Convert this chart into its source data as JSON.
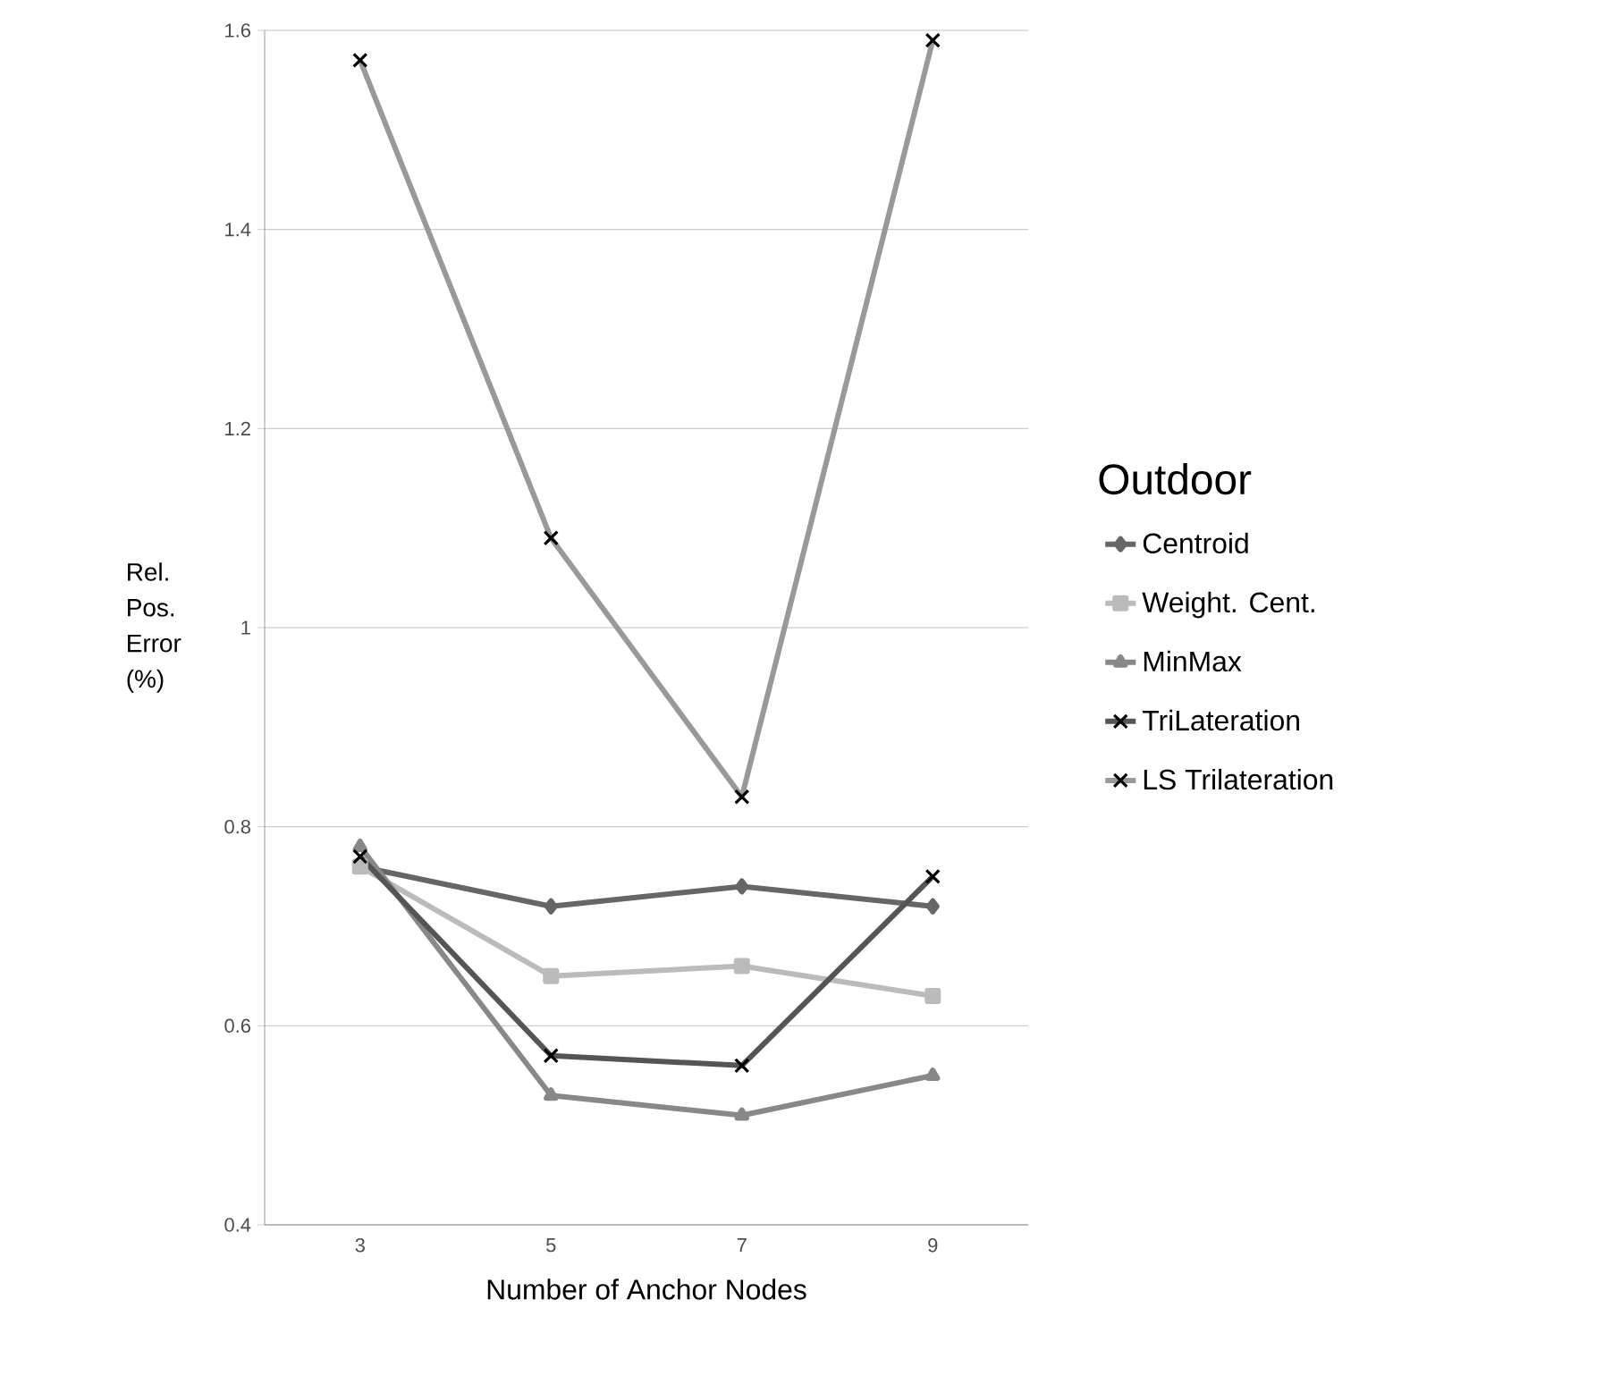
{
  "chart_data": {
    "type": "line",
    "xlabel": "Number of Anchor Nodes",
    "ylabel": "Rel. Pos. Error (%)",
    "legend_title": "Outdoor",
    "categories": [
      "3",
      "5",
      "7",
      "9"
    ],
    "series": [
      {
        "name": "Centroid",
        "color": "#666666",
        "marker": "diamond",
        "values": [
          0.76,
          0.72,
          0.74,
          0.72
        ]
      },
      {
        "name": "Weight. Cent.",
        "color": "#bbbbbb",
        "marker": "square",
        "values": [
          0.76,
          0.65,
          0.66,
          0.63
        ]
      },
      {
        "name": "MinMax",
        "color": "#888888",
        "marker": "triangle",
        "values": [
          0.78,
          0.53,
          0.51,
          0.55
        ]
      },
      {
        "name": "TriLateration",
        "color": "#555555",
        "marker": "cross",
        "values": [
          0.77,
          0.57,
          0.56,
          0.75
        ]
      },
      {
        "name": "LS Trilateration",
        "color": "#999999",
        "marker": "cross",
        "values": [
          1.57,
          1.09,
          0.83,
          1.59
        ]
      }
    ],
    "ylim": [
      0.4,
      1.6
    ],
    "yticks": [
      0.4,
      0.6,
      0.8,
      1,
      1.2,
      1.4,
      1.6
    ],
    "grid": "y",
    "legend": "right"
  }
}
